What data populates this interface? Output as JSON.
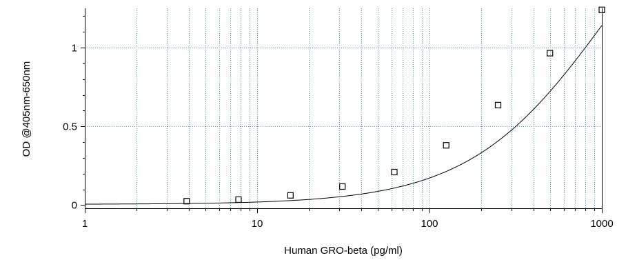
{
  "chart_data": {
    "type": "scatter",
    "title": "",
    "xlabel": "Human GRO-beta (pg/ml)",
    "ylabel": "OD @405nm-650nm",
    "xscale": "log",
    "xlim": [
      1,
      1000
    ],
    "ylim": [
      -0.02,
      1.25
    ],
    "x_ticks": [
      1,
      10,
      100,
      1000
    ],
    "x_tick_labels": [
      "1",
      "10",
      "100",
      "1000"
    ],
    "y_ticks": [
      0,
      0.5,
      1
    ],
    "y_tick_labels": [
      "0",
      "0.5",
      "1"
    ],
    "grid": true,
    "legend": "none",
    "series": [
      {
        "marker": "open-square",
        "x": [
          3.9,
          7.8,
          15.6,
          31.25,
          62.5,
          125,
          250,
          500,
          1000
        ],
        "y": [
          0.025,
          0.035,
          0.062,
          0.118,
          0.21,
          0.38,
          0.635,
          0.965,
          1.24
        ]
      }
    ],
    "fit_curve": {
      "type": "4PL",
      "bottom": 0.005,
      "top": 2.4,
      "ec50": 1100,
      "hill": 1.08
    },
    "colors": {
      "grid": "#33aadd",
      "axis": "#000000",
      "curve": "#000000",
      "marker": "#000000"
    }
  }
}
